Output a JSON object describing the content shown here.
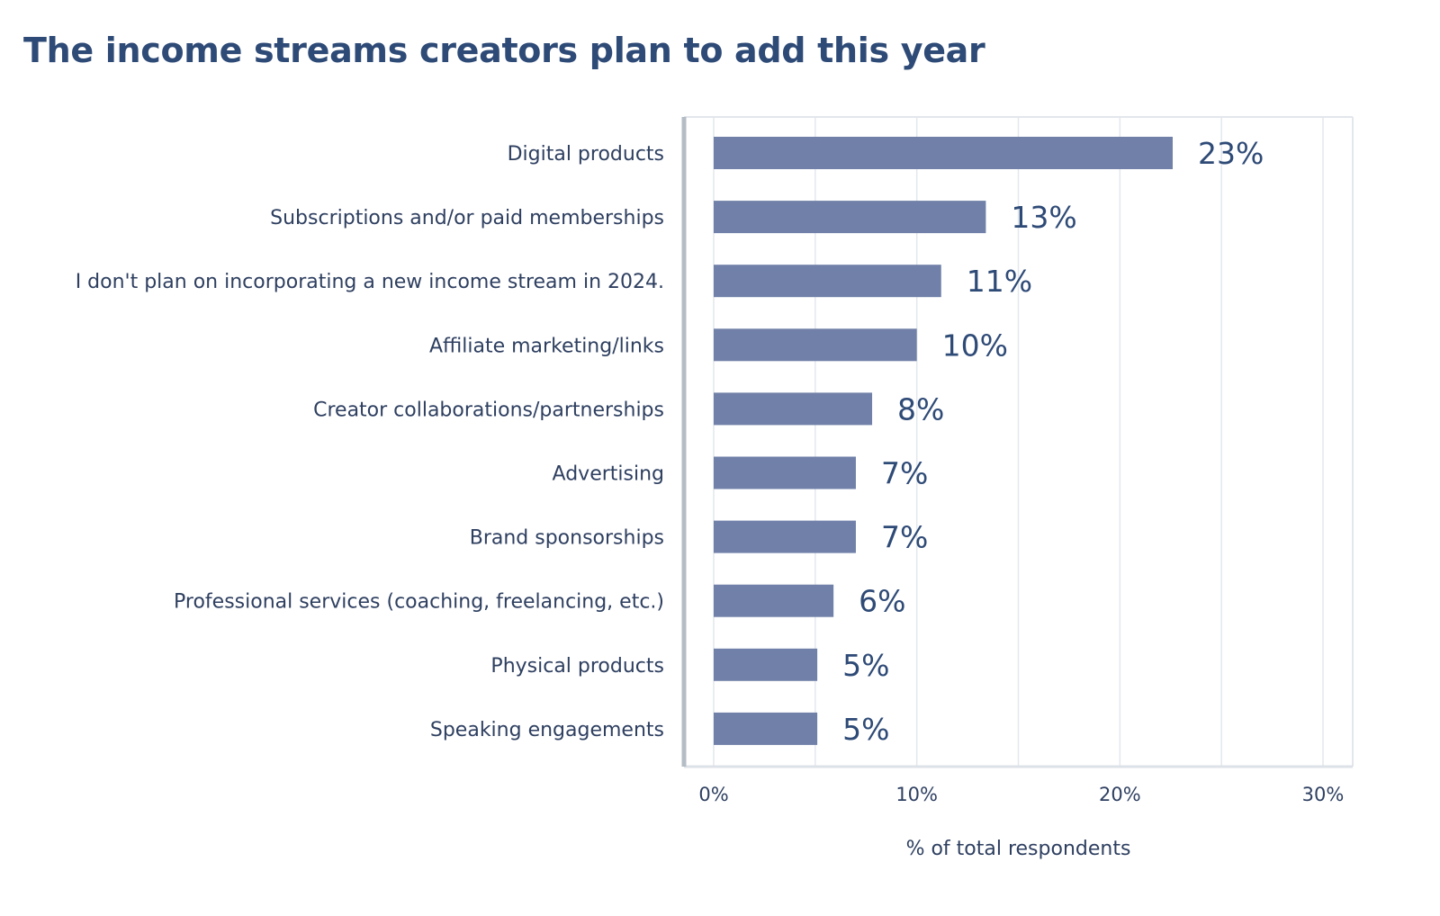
{
  "chart_data": {
    "type": "bar",
    "orientation": "horizontal",
    "title": "The income streams creators plan to add this year",
    "xlabel": "% of total respondents",
    "ylabel": "",
    "xlim": [
      0,
      30
    ],
    "x_ticks": [
      0,
      10,
      20,
      30
    ],
    "x_tick_labels": [
      "0%",
      "10%",
      "20%",
      "30%"
    ],
    "grid": true,
    "grid_step": 5,
    "bar_color": "#7080a8",
    "categories": [
      "Digital products",
      "Subscriptions and/or paid memberships",
      "I don't plan on incorporating a new income stream in 2024.",
      "Affiliate marketing/links",
      "Creator collaborations/partnerships",
      "Advertising",
      "Brand sponsorships",
      "Professional services (coaching, freelancing, etc.)",
      "Physical products",
      "Speaking engagements"
    ],
    "values": [
      22.6,
      13.4,
      11.2,
      10.0,
      7.8,
      7.0,
      7.0,
      5.9,
      5.1,
      5.1
    ],
    "data_labels": [
      "23%",
      "13%",
      "11%",
      "10%",
      "8%",
      "7%",
      "7%",
      "6%",
      "5%",
      "5%"
    ]
  }
}
